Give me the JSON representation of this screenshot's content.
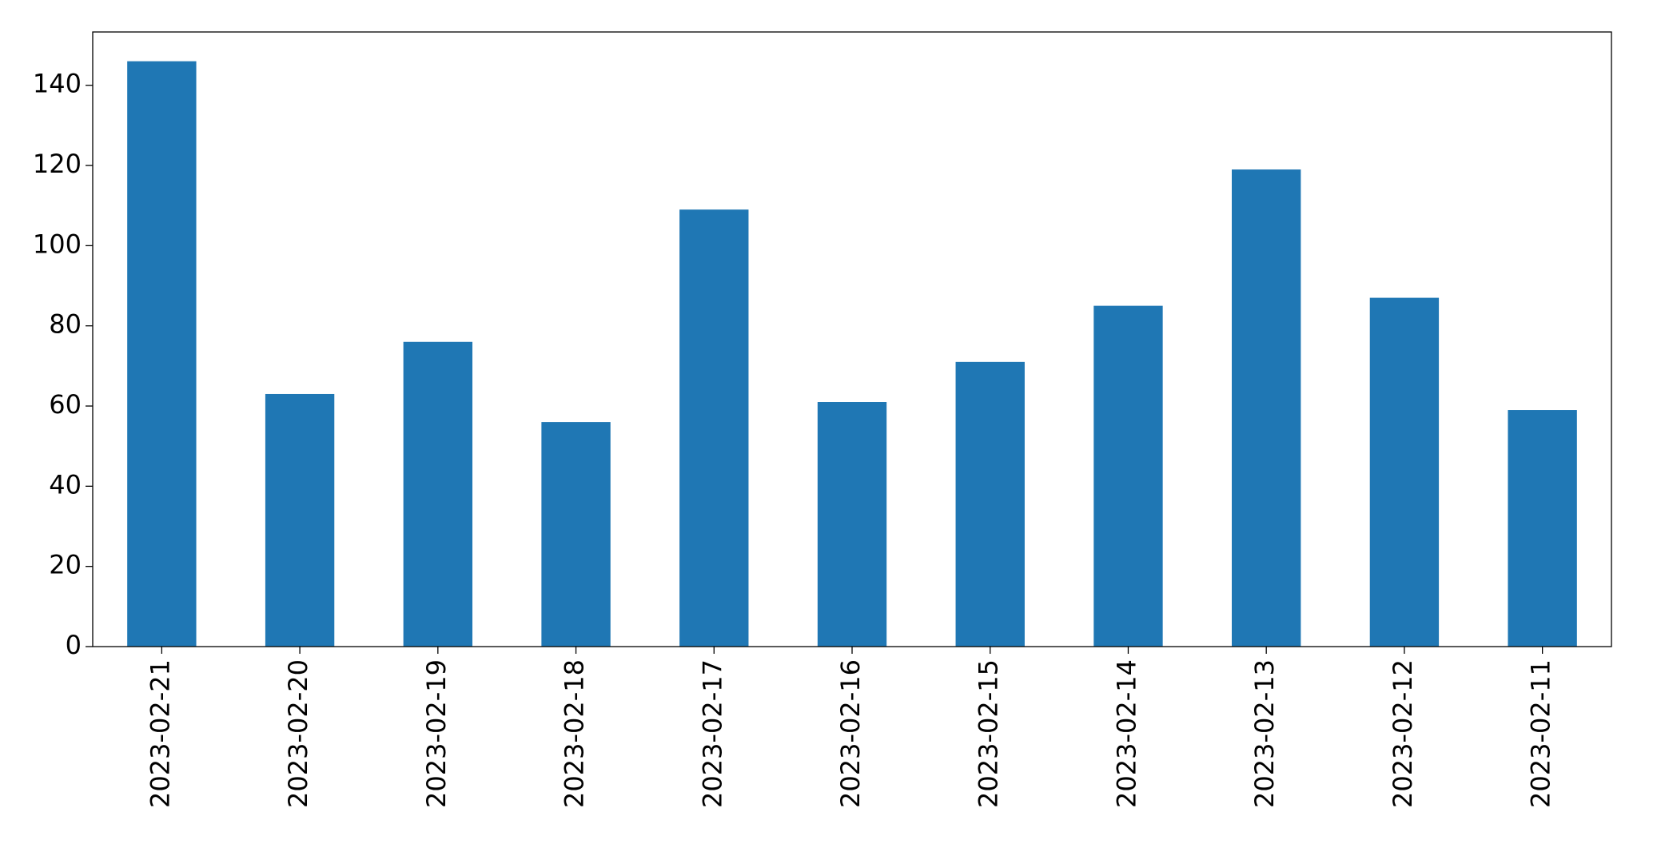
{
  "chart_data": {
    "type": "bar",
    "categories": [
      "2023-02-21",
      "2023-02-20",
      "2023-02-19",
      "2023-02-18",
      "2023-02-17",
      "2023-02-16",
      "2023-02-15",
      "2023-02-14",
      "2023-02-13",
      "2023-02-12",
      "2023-02-11"
    ],
    "values": [
      146,
      63,
      76,
      56,
      109,
      61,
      71,
      85,
      119,
      87,
      59
    ],
    "color": "#1f77b4",
    "ylim": [
      0,
      153.3
    ],
    "yticks": [
      0,
      20,
      40,
      60,
      80,
      100,
      120,
      140
    ],
    "grid": false
  }
}
